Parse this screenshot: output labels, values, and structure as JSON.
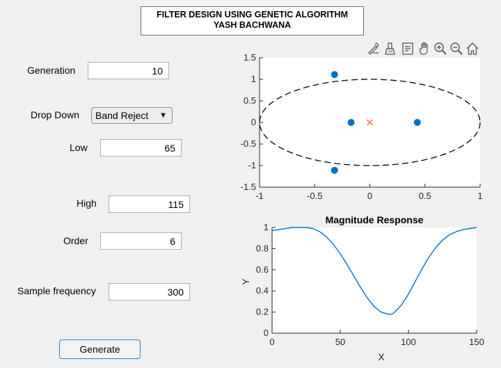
{
  "title": {
    "line1": "FILTER DESIGN USING GENETIC ALGORITHM",
    "line2": "YASH BACHWANA"
  },
  "form": {
    "generation": {
      "label": "Generation",
      "value": "10"
    },
    "drop_down": {
      "label": "Drop Down",
      "value": "Band Reject",
      "arrow": "▼"
    },
    "low": {
      "label": "Low",
      "value": "65"
    },
    "high": {
      "label": "High",
      "value": "115"
    },
    "order": {
      "label": "Order",
      "value": "6"
    },
    "sample_frequency": {
      "label": "Sample frequency",
      "value": "300"
    },
    "generate_label": "Generate"
  },
  "toolbar": {
    "icons": [
      "brush-edit-icon",
      "data-cursor-icon",
      "data-tips-icon",
      "pan-hand-icon",
      "zoom-in-icon",
      "zoom-out-icon",
      "home-restore-icon"
    ]
  },
  "chart_data": [
    {
      "type": "scatter",
      "title": "",
      "xlabel": "",
      "ylabel": "",
      "xlim": [
        -1,
        1
      ],
      "ylim": [
        -1.5,
        1.5
      ],
      "xticks": [
        "-1",
        "-0.5",
        "0",
        "0.5",
        "1"
      ],
      "yticks": [
        "1.5",
        "1",
        "0.5",
        "0",
        "-0.5",
        "-1",
        "-1.5"
      ],
      "poles": [
        {
          "x": -0.32,
          "y": 1.11
        },
        {
          "x": -0.32,
          "y": -1.11
        },
        {
          "x": -0.17,
          "y": 0
        },
        {
          "x": 0.43,
          "y": 0
        }
      ],
      "zeros": [
        {
          "x": 0,
          "y": 0
        }
      ],
      "ellipse": {
        "cx": 0,
        "cy": 0,
        "rx": 1,
        "ry": 1,
        "style": "dashed"
      },
      "colors": {
        "pole": "#0072bd",
        "zero": "#d95319",
        "curve": "#000000"
      }
    },
    {
      "type": "line",
      "title": "Magnitude Response",
      "xlabel": "X",
      "ylabel": "Y",
      "xlim": [
        0,
        150
      ],
      "ylim": [
        0,
        1
      ],
      "xticks": [
        "0",
        "50",
        "100",
        "150"
      ],
      "yticks": [
        "1",
        "0.8",
        "0.6",
        "0.4",
        "0.2",
        "0"
      ],
      "series": [
        {
          "x": [
            0,
            5,
            10,
            15,
            20,
            25,
            30,
            35,
            40,
            45,
            50,
            55,
            60,
            65,
            70,
            75,
            80,
            85,
            88,
            90,
            95,
            100,
            105,
            110,
            115,
            120,
            125,
            130,
            135,
            140,
            145,
            150
          ],
          "values": [
            0.97,
            0.98,
            0.99,
            1.0,
            1.0,
            1.0,
            0.99,
            0.96,
            0.91,
            0.84,
            0.75,
            0.65,
            0.54,
            0.43,
            0.33,
            0.25,
            0.2,
            0.18,
            0.18,
            0.2,
            0.27,
            0.37,
            0.49,
            0.61,
            0.72,
            0.81,
            0.88,
            0.93,
            0.96,
            0.98,
            0.99,
            1.0
          ]
        }
      ],
      "colors": {
        "line": "#0072bd"
      }
    }
  ]
}
